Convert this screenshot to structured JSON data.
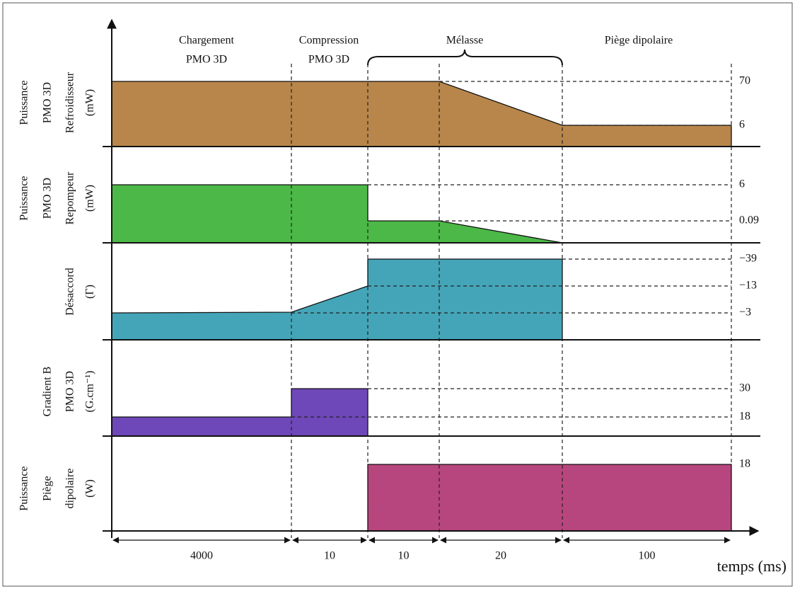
{
  "phases": [
    [
      "Chargement",
      "PMO 3D"
    ],
    [
      "Compression",
      "PMO 3D"
    ],
    [
      "Mélasse"
    ],
    [
      "Piège dipolaire"
    ]
  ],
  "rows": [
    {
      "label": [
        "Puissance",
        "PMO 3D",
        "Refroidisseur",
        "(mW)"
      ],
      "levels": [
        "70",
        "6"
      ]
    },
    {
      "label": [
        "Puissance",
        "PMO 3D",
        "Repompeur",
        "(mW)"
      ],
      "levels": [
        "6",
        "0.09"
      ]
    },
    {
      "label": [
        "Désaccord",
        "(Γ)"
      ],
      "levels": [
        "−39",
        "−13",
        "−3"
      ]
    },
    {
      "label": [
        "Gradient B",
        "PMO 3D",
        "(G.cm⁻¹)"
      ],
      "levels": [
        "30",
        "18"
      ]
    },
    {
      "label": [
        "Puissance",
        "Piège",
        "dipolaire",
        "(W)"
      ],
      "levels": [
        "18"
      ]
    }
  ],
  "durations": [
    "4000",
    "10",
    "10",
    "20",
    "100"
  ],
  "x_axis_label": "temps (ms)"
}
